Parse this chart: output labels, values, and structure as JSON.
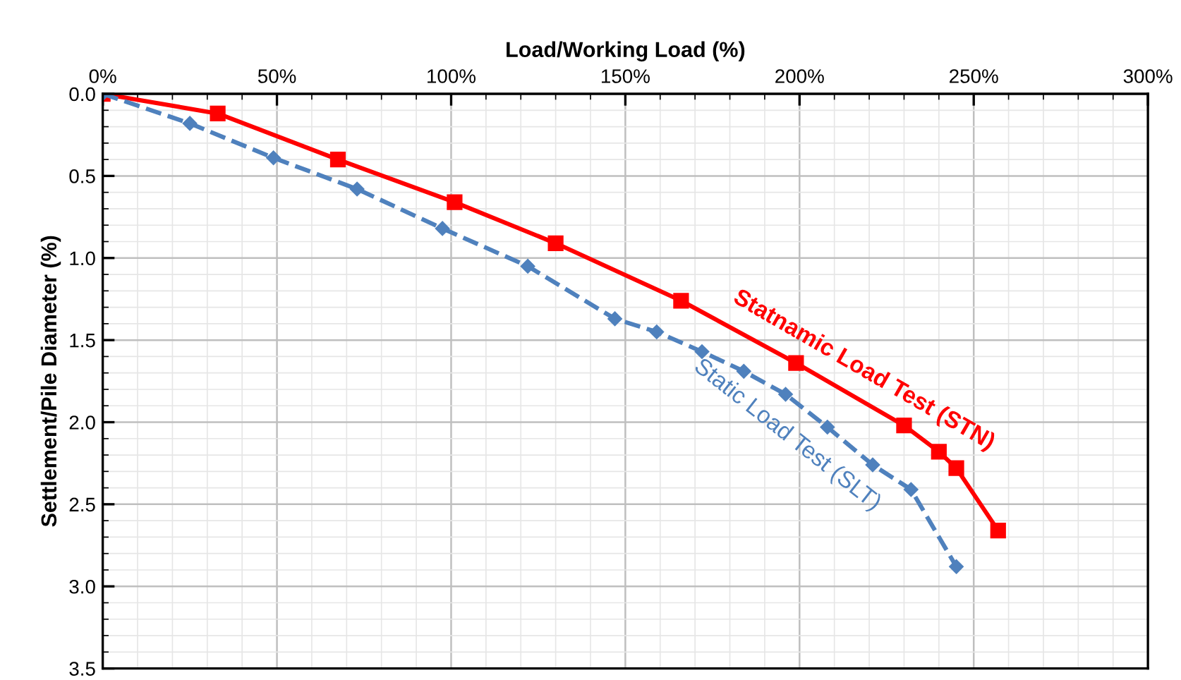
{
  "chart_data": {
    "type": "line",
    "xlabel": "Load/Working Load (%)",
    "ylabel": "Settlement/Pile Diameter (%)",
    "xlim": [
      0,
      300
    ],
    "xticks": [
      {
        "value": 0,
        "label": "0%"
      },
      {
        "value": 50,
        "label": "50%"
      },
      {
        "value": 100,
        "label": "100%"
      },
      {
        "value": 150,
        "label": "150%"
      },
      {
        "value": 200,
        "label": "200%"
      },
      {
        "value": 250,
        "label": "250%"
      },
      {
        "value": 300,
        "label": "300%"
      }
    ],
    "ylim": [
      3.5,
      0
    ],
    "yticks": [
      {
        "value": 0,
        "label": "0.0"
      },
      {
        "value": 0.5,
        "label": "0.5"
      },
      {
        "value": 1,
        "label": "1.0"
      },
      {
        "value": 1.5,
        "label": "1.5"
      },
      {
        "value": 2,
        "label": "2.0"
      },
      {
        "value": 2.5,
        "label": "2.5"
      },
      {
        "value": 3,
        "label": "3.0"
      },
      {
        "value": 3.5,
        "label": "3.5"
      }
    ],
    "grid": true,
    "legend": false,
    "series": [
      {
        "name": "Statnamic Load Test (STN)",
        "color": "#ff0000",
        "marker": "square",
        "line_style": "solid",
        "x": [
          0,
          33,
          67.5,
          101,
          130,
          166,
          199,
          230,
          240,
          245,
          257
        ],
        "values": [
          0,
          0.12,
          0.4,
          0.66,
          0.91,
          1.26,
          1.64,
          2.02,
          2.18,
          2.28,
          2.66
        ]
      },
      {
        "name": "Static Load Test (SLT)",
        "color": "#4f81bd",
        "marker": "diamond",
        "line_style": "dashed",
        "x": [
          0,
          25,
          49,
          73,
          97.5,
          122,
          147,
          159,
          172,
          184,
          196,
          208,
          221,
          232,
          245
        ],
        "values": [
          0,
          0.18,
          0.39,
          0.58,
          0.82,
          1.05,
          1.37,
          1.45,
          1.57,
          1.69,
          1.83,
          2.03,
          2.26,
          2.41,
          2.88
        ]
      }
    ]
  }
}
